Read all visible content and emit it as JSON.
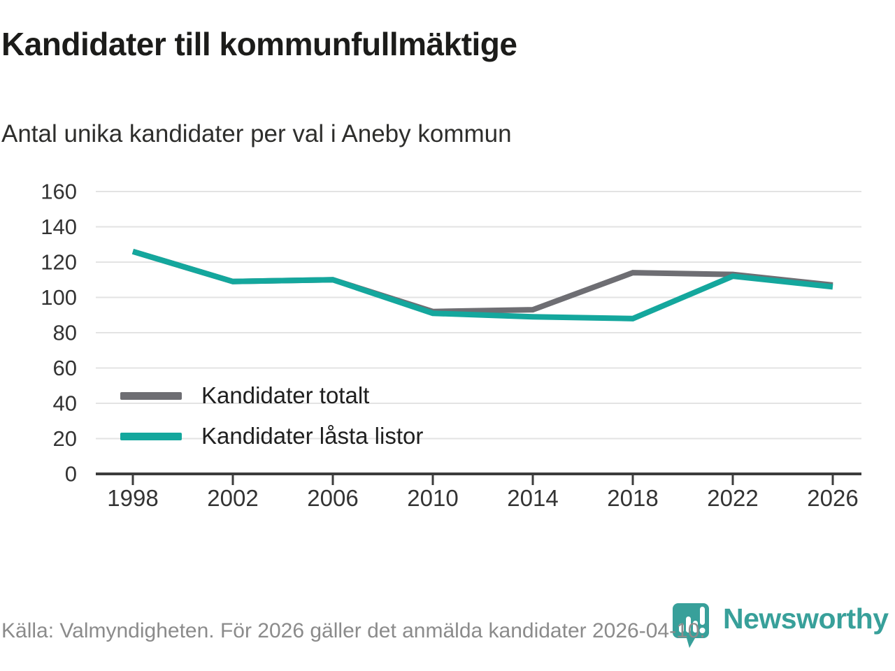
{
  "header": {
    "title": "Kandidater till kommunfullmäktige",
    "subtitle": "Antal unika kandidater per val i Aneby kommun"
  },
  "chart_data": {
    "type": "line",
    "x": [
      1998,
      2002,
      2006,
      2010,
      2014,
      2018,
      2022,
      2026
    ],
    "series": [
      {
        "name": "Kandidater totalt",
        "color": "#6e6e73",
        "values": [
          126,
          109,
          110,
          92,
          93,
          114,
          113,
          107
        ]
      },
      {
        "name": "Kandidater låsta listor",
        "color": "#14a79d",
        "values": [
          126,
          109,
          110,
          91,
          89,
          88,
          112,
          106
        ]
      }
    ],
    "ylim": [
      0,
      160
    ],
    "ytick_step": 20,
    "grid": true,
    "legend_position": "inside-left-middle",
    "colors": {
      "gridline": "#e3e3e3",
      "axis": "#3c3c3c",
      "tick_label": "#333333"
    }
  },
  "footer": {
    "source_text": "Källa: Valmyndigheten. För 2026 gäller det anmälda kandidater 2026-04-10."
  },
  "branding": {
    "logo_text": "Newsworthy",
    "logo_color": "#38a09a",
    "logo_icon": "newsworthy-pin-barchart-icon"
  }
}
